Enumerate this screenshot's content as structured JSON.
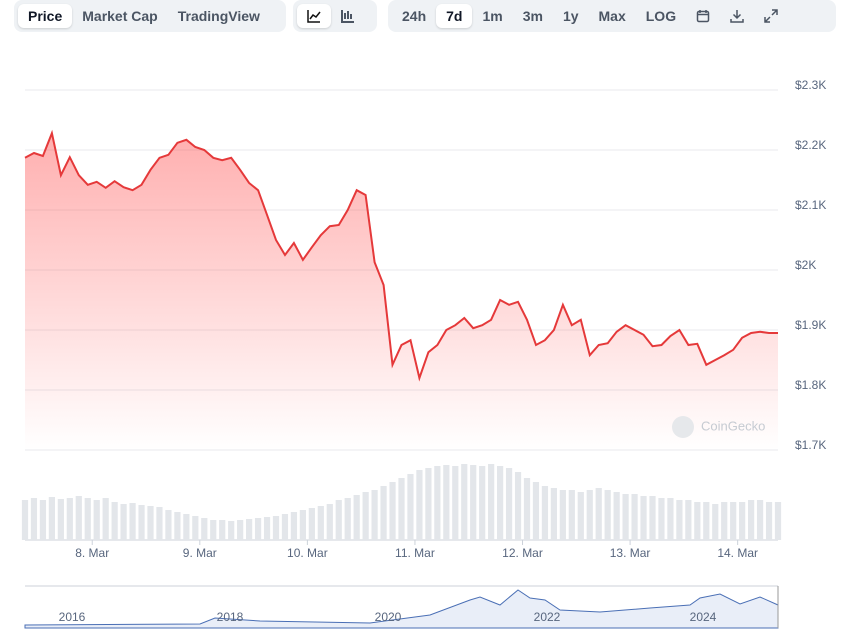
{
  "tabs": [
    "Price",
    "Market Cap",
    "TradingView"
  ],
  "ranges": [
    "24h",
    "7d",
    "1m",
    "3m",
    "1y",
    "Max",
    "LOG"
  ],
  "chart_data": {
    "type": "area",
    "color": "#e5393a",
    "values": [
      2187,
      2195,
      2190,
      2228,
      2158,
      2188,
      2158,
      2142,
      2147,
      2137,
      2148,
      2138,
      2133,
      2142,
      2167,
      2187,
      2192,
      2212,
      2217,
      2205,
      2200,
      2187,
      2183,
      2187,
      2167,
      2145,
      2133,
      2092,
      2050,
      2025,
      2045,
      2017,
      2038,
      2058,
      2073,
      2075,
      2100,
      2133,
      2125,
      2013,
      1975,
      1842,
      1875,
      1883,
      1820,
      1863,
      1875,
      1900,
      1908,
      1920,
      1903,
      1908,
      1917,
      1950,
      1942,
      1947,
      1917,
      1875,
      1883,
      1900,
      1942,
      1908,
      1917,
      1858,
      1875,
      1878,
      1897,
      1908,
      1900,
      1892,
      1873,
      1875,
      1890,
      1900,
      1875,
      1877,
      1842,
      1850,
      1858,
      1867,
      1887,
      1895,
      1897,
      1895,
      1895
    ],
    "volume": [
      40,
      42,
      40,
      43,
      41,
      42,
      44,
      42,
      40,
      42,
      38,
      36,
      37,
      35,
      34,
      33,
      30,
      28,
      26,
      24,
      22,
      20,
      20,
      19,
      20,
      21,
      22,
      23,
      24,
      26,
      28,
      30,
      32,
      34,
      36,
      40,
      42,
      45,
      48,
      50,
      54,
      58,
      62,
      66,
      70,
      72,
      74,
      75,
      74,
      76,
      75,
      74,
      76,
      74,
      72,
      68,
      62,
      58,
      54,
      52,
      50,
      50,
      48,
      50,
      52,
      50,
      48,
      46,
      46,
      44,
      44,
      42,
      42,
      40,
      40,
      38,
      38,
      36,
      38,
      38,
      38,
      40,
      40,
      38,
      38
    ],
    "xlim": [
      0,
      84
    ],
    "xticks": [
      {
        "value": 7.5,
        "label": "8. Mar"
      },
      {
        "value": 19.5,
        "label": "9. Mar"
      },
      {
        "value": 31.5,
        "label": "10. Mar"
      },
      {
        "value": 43.5,
        "label": "11. Mar"
      },
      {
        "value": 55.5,
        "label": "12. Mar"
      },
      {
        "value": 67.5,
        "label": "13. Mar"
      },
      {
        "value": 79.5,
        "label": "14. Mar"
      }
    ],
    "ylim": [
      1700,
      2300
    ],
    "yticks": [
      {
        "value": 2300,
        "label": "$2.3K"
      },
      {
        "value": 2200,
        "label": "$2.2K"
      },
      {
        "value": 2100,
        "label": "$2.1K"
      },
      {
        "value": 2000,
        "label": "$2K"
      },
      {
        "value": 1900,
        "label": "$1.9K"
      },
      {
        "value": 1800,
        "label": "$1.8K"
      },
      {
        "value": 1700,
        "label": "$1.7K"
      }
    ],
    "grid": true,
    "watermark": "CoinGecko",
    "navigator_labels": [
      "2016",
      "2018",
      "2020",
      "2022",
      "2024"
    ]
  }
}
